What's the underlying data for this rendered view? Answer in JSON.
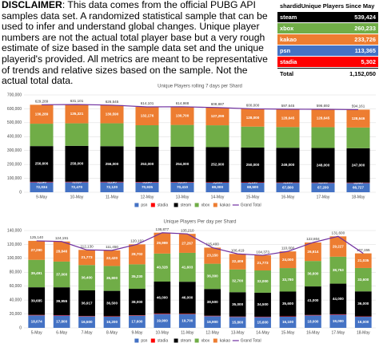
{
  "disclaimer": {
    "label": "DISCLAIMER",
    "text": ": This data comes from the official PUBG API samples data set. A randomized statistical sample that can be used to infer and understand global changes. Unique player numbers are not the actual total player base but a very rough estimate of size based in the sample data set and the unique playerid's provided. All metrics are meant to be representative of trends and relative sizes based on the sample. Not the actual total data."
  },
  "table": {
    "header": [
      "shardid",
      "Unique Players Since May 3"
    ],
    "rows": [
      {
        "name": "steam",
        "value": "539,424",
        "color": "#000000"
      },
      {
        "name": "xbox",
        "value": "260,233",
        "color": "#70ad47"
      },
      {
        "name": "kakao",
        "value": "233,726",
        "color": "#ed7d31"
      },
      {
        "name": "psn",
        "value": "113,365",
        "color": "#4472c4"
      },
      {
        "name": "stadia",
        "value": "5,302",
        "color": "#ff0000"
      }
    ],
    "total": {
      "name": "Total",
      "value": "1,152,050"
    }
  },
  "chart_data": [
    {
      "type": "bar",
      "stacked": true,
      "title": "Unique Players rolling 7 days per Shard",
      "grid": true,
      "legend": "bottom",
      "categories": [
        "9-May",
        "10-May",
        "11-May",
        "12-May",
        "13-May",
        "14-May",
        "15-May",
        "16-May",
        "17-May",
        "18-May"
      ],
      "ylim": [
        0,
        700000
      ],
      "yticks": [
        0,
        {
          "value": 100000,
          "label": "100,000"
        },
        {
          "value": 200000,
          "label": "200,000"
        },
        {
          "value": 300000,
          "label": "300,000"
        },
        {
          "value": 400000,
          "label": "400,000"
        },
        {
          "value": 500000,
          "label": "500,000"
        },
        {
          "value": 600000,
          "label": "600,000"
        },
        {
          "value": 700000,
          "label": "700,000"
        }
      ],
      "series": [
        {
          "name": "psn",
          "color": "#4472c4",
          "values": [
            72034,
            72470,
            72120,
            70935,
            70410,
            69000,
            68500,
            67800,
            67200,
            66727
          ],
          "value_labels": [
            "72,034",
            "72,470",
            "72,120",
            "70,935",
            "70,410",
            "69,000",
            "68,500",
            "67,800",
            "67,200",
            "66,727"
          ]
        },
        {
          "name": "stadia",
          "color": "#ff0000",
          "values": [
            3296,
            3310,
            3290,
            3280,
            3250,
            3200,
            3150,
            3100,
            3050,
            3000
          ],
          "value_labels": [
            "3,296",
            "3,310",
            "3,290",
            "3,280",
            "3,250",
            "3,200",
            "3,150",
            "3,100",
            "3,050",
            "3,000"
          ]
        },
        {
          "name": "steam",
          "color": "#000000",
          "values": [
            256606,
            258000,
            256000,
            253000,
            254000,
            252000,
            250000,
            249000,
            248000,
            247000
          ],
          "value_labels": [
            "256,606",
            "258,000",
            "256,000",
            "253,000",
            "254,000",
            "252,000",
            "250,000",
            "249,000",
            "248,000",
            "247,000"
          ]
        },
        {
          "name": "xbox",
          "color": "#70ad47",
          "values": [
            161064,
            162000,
            164545,
            154710,
            156628,
            157388,
            150350,
            149100,
            149797,
            148788
          ]
        },
        {
          "name": "kakao",
          "color": "#ed7d31",
          "values": [
            136289,
            135321,
            130590,
            132176,
            130700,
            127299,
            128000,
            128645,
            128645,
            128646
          ],
          "value_labels": [
            "136,289",
            "135,321",
            "130,590",
            "132,176",
            "130,700",
            "127,299",
            "128,000",
            "128,645",
            "128,645",
            "128,646"
          ]
        },
        {
          "name": "Grand Total",
          "type": "line",
          "color": "#7030a0",
          "values": [
            629289,
            631101,
            626545,
            614101,
            614988,
            608887,
            600000,
            597645,
            596692,
            594161
          ],
          "value_labels": [
            "629,289",
            "631,101",
            "626,545",
            "614,101",
            "614,988",
            "608,887",
            "600,000",
            "597,645",
            "596,692",
            "594,161"
          ]
        }
      ]
    },
    {
      "type": "bar",
      "stacked": true,
      "title": "Unique Players Per day per Shard",
      "grid": true,
      "legend": "bottom",
      "categories": [
        "5-May",
        "6-May",
        "7-May",
        "8-May",
        "9-May",
        "10-May",
        "11-May",
        "12-May",
        "13-May",
        "14-May",
        "15-May",
        "16-May",
        "17-May",
        "18-May"
      ],
      "ylim": [
        0,
        140000
      ],
      "yticks": [
        0,
        {
          "value": 20000,
          "label": "20,000"
        },
        {
          "value": 40000,
          "label": "40,000"
        },
        {
          "value": 60000,
          "label": "60,000"
        },
        {
          "value": 80000,
          "label": "80,000"
        },
        {
          "value": 100000,
          "label": "100,000"
        },
        {
          "value": 120000,
          "label": "120,000"
        },
        {
          "value": 140000,
          "label": "140,000"
        }
      ],
      "series": [
        {
          "name": "psn",
          "color": "#4472c4",
          "values": [
            18074,
            17800,
            16500,
            16200,
            17600,
            19900,
            19700,
            16900,
            15800,
            15600,
            16100,
            18000,
            19000,
            16000
          ],
          "value_labels": [
            "18,074",
            "17,800",
            "16,500",
            "16,200",
            "17,600",
            "19,900",
            "19,700",
            "16,900",
            "15,800",
            "15,600",
            "16,100",
            "18,000",
            "19,000",
            "16,000"
          ]
        },
        {
          "name": "stadia",
          "color": "#ff0000",
          "values": [
            600,
            590,
            540,
            530,
            570,
            650,
            640,
            550,
            510,
            500,
            520,
            590,
            620,
            520
          ]
        },
        {
          "name": "steam",
          "color": "#000000",
          "values": [
            39685,
            39955,
            36917,
            36500,
            38000,
            46000,
            46000,
            38500,
            35000,
            34500,
            35600,
            41000,
            44000,
            36000
          ],
          "value_labels": [
            "39,685",
            "39,955",
            "36,917",
            "36,500",
            "38,000",
            "46,000",
            "46,000",
            "38,500",
            "35,000",
            "34,500",
            "35,600",
            "41,000",
            "44,000",
            "36,000"
          ]
        },
        {
          "name": "xbox",
          "color": "#70ad47",
          "values": [
            39491,
            37000,
            36400,
            35800,
            35230,
            40328,
            41603,
            36300,
            32700,
            32000,
            33780,
            36600,
            38753,
            33600
          ],
          "value_labels": [
            "39,491",
            "37,000",
            "36,400",
            "35,800",
            "35,230",
            "40,328",
            "41,603",
            "36,300",
            "32,700",
            "32,000",
            "33,780",
            "36,600",
            "38,753",
            "33,600"
          ]
        },
        {
          "name": "kakao",
          "color": "#ed7d31",
          "values": [
            27290,
            28846,
            21773,
            22420,
            28702,
            29999,
            27267,
            23150,
            22409,
            21773,
            24000,
            26614,
            29227,
            21035
          ],
          "value_labels": [
            "27,290",
            "28,846",
            "21,773",
            "22,420",
            "28,702",
            "29,999",
            "27,267",
            "23,150",
            "22,409",
            "21,773",
            "24,000",
            "26,614",
            "29,227",
            "21,035"
          ]
        },
        {
          "name": "Grand Total",
          "type": "line",
          "color": "#7030a0",
          "values": [
            125140,
            124191,
            112130,
            111450,
            120102,
            136877,
            135210,
            115400,
            106419,
            104373,
            110000,
            122804,
            131600,
            107155
          ],
          "value_labels": [
            "125,140",
            "124,191",
            "112,130",
            "111,450",
            "120,102",
            "136,877",
            "135,210",
            "115,400",
            "106,419",
            "104,373",
            "110,000",
            "122,804",
            "131,600",
            "107,155"
          ]
        }
      ]
    }
  ]
}
